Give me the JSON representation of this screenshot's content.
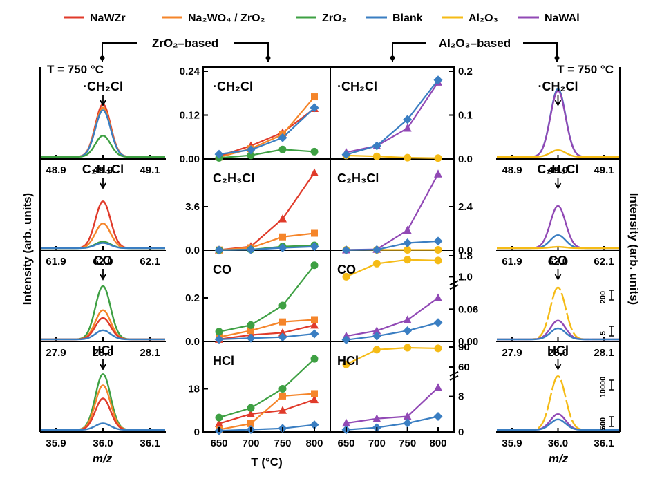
{
  "legend": [
    {
      "label": "NaWZr",
      "color": "#e03a2a"
    },
    {
      "label": "Na2WO4 / ZrO2",
      "color": "#f5852a"
    },
    {
      "label": "ZrO2",
      "color": "#3ea043"
    },
    {
      "label": "Blank",
      "color": "#3a7ec2"
    },
    {
      "label": "Al2O3",
      "color": "#f5bb16"
    },
    {
      "label": "NaWAl",
      "color": "#9149b5"
    }
  ],
  "group_labels": {
    "zro2": "ZrO2–based",
    "al2o3": "Al2O3–based"
  },
  "temp_labels": {
    "left": "T = 750 °C",
    "right": "T = 750 °C"
  },
  "axis_labels": {
    "left_y": "Intensity (arb. units)",
    "right_y": "Intensity (arb. units)",
    "mz_left": "m/z",
    "mz_right": "m/z",
    "temp_x": "T (°C)"
  },
  "species": [
    "·CH2Cl",
    "C2H3Cl",
    "CO",
    "HCl"
  ],
  "chart_data": [
    {
      "type": "line",
      "panel": "ZrO2-based",
      "x": [
        650,
        700,
        750,
        800
      ],
      "xlabel": "T (°C)",
      "rows": [
        {
          "species": "·CH2Cl",
          "ylim": [
            0,
            0.24
          ],
          "yticks": [
            "0.00",
            "0.12",
            "0.24"
          ],
          "series": [
            {
              "name": "NaWZr",
              "values": [
                0.008,
                0.036,
                0.072,
                0.138
              ]
            },
            {
              "name": "Na2WO4 / ZrO2",
              "values": [
                0.005,
                0.028,
                0.067,
                0.17
              ]
            },
            {
              "name": "ZrO2",
              "values": [
                0.003,
                0.01,
                0.026,
                0.02
              ]
            },
            {
              "name": "Blank",
              "values": [
                0.013,
                0.025,
                0.058,
                0.14
              ]
            }
          ]
        },
        {
          "species": "C2H3Cl",
          "ylim": [
            0,
            7.2
          ],
          "yticks": [
            "0.0",
            "3.6"
          ],
          "series": [
            {
              "name": "NaWZr",
              "values": [
                0.02,
                0.3,
                2.6,
                6.4
              ]
            },
            {
              "name": "Na2WO4 / ZrO2",
              "values": [
                0.02,
                0.2,
                1.1,
                1.4
              ]
            },
            {
              "name": "ZrO2",
              "values": [
                0.01,
                0.05,
                0.3,
                0.4
              ]
            },
            {
              "name": "Blank",
              "values": [
                0.01,
                0.05,
                0.2,
                0.3
              ]
            }
          ]
        },
        {
          "species": "CO",
          "ylim": [
            0,
            0.4
          ],
          "yticks": [
            "0.0",
            "0.2"
          ],
          "series": [
            {
              "name": "NaWZr",
              "values": [
                0.01,
                0.03,
                0.04,
                0.075
              ]
            },
            {
              "name": "Na2WO4 / ZrO2",
              "values": [
                0.02,
                0.05,
                0.09,
                0.1
              ]
            },
            {
              "name": "ZrO2",
              "values": [
                0.045,
                0.075,
                0.165,
                0.35
              ]
            },
            {
              "name": "Blank",
              "values": [
                0.01,
                0.015,
                0.02,
                0.035
              ]
            }
          ]
        },
        {
          "species": "HCl",
          "ylim": [
            0,
            36
          ],
          "yticks": [
            "0",
            "18"
          ],
          "series": [
            {
              "name": "NaWZr",
              "values": [
                3.5,
                7.5,
                9.0,
                13.5
              ]
            },
            {
              "name": "Na2WO4 / ZrO2",
              "values": [
                1.0,
                3.5,
                15.0,
                16.0
              ]
            },
            {
              "name": "ZrO2",
              "values": [
                6.0,
                10.0,
                18.0,
                30.5
              ]
            },
            {
              "name": "Blank",
              "values": [
                0.5,
                1.0,
                1.5,
                3.0
              ]
            }
          ]
        }
      ]
    },
    {
      "type": "line",
      "panel": "Al2O3-based",
      "x": [
        650,
        700,
        750,
        800
      ],
      "xlabel": "T (°C)",
      "rows": [
        {
          "species": "·CH2Cl",
          "ylim": [
            0,
            0.2
          ],
          "yticks": [
            "0.0",
            "0.1",
            "0.2"
          ],
          "series": [
            {
              "name": "Al2O3",
              "values": [
                0.008,
                0.006,
                0.003,
                0.002
              ]
            },
            {
              "name": "NaWAl",
              "values": [
                0.015,
                0.03,
                0.07,
                0.175
              ]
            },
            {
              "name": "Blank",
              "values": [
                0.01,
                0.03,
                0.09,
                0.18
              ]
            }
          ]
        },
        {
          "species": "C2H3Cl",
          "ylim": [
            0,
            4.8
          ],
          "yticks": [
            "0.0",
            "2.4"
          ],
          "series": [
            {
              "name": "Al2O3",
              "values": [
                0.02,
                0.02,
                0.02,
                0.02
              ]
            },
            {
              "name": "NaWAl",
              "values": [
                0.02,
                0.05,
                1.1,
                4.2
              ]
            },
            {
              "name": "Blank",
              "values": [
                0.01,
                0.03,
                0.4,
                0.5
              ]
            }
          ]
        },
        {
          "species": "CO",
          "yticks": [
            "0.00",
            "0.06",
            "1.0",
            "1.8"
          ],
          "broken_axis": {
            "lower": [
              0,
              0.1
            ],
            "upper": [
              0.9,
              1.8
            ]
          },
          "series": [
            {
              "name": "Al2O3",
              "values": [
                1.0,
                1.5,
                1.65,
                1.62
              ]
            },
            {
              "name": "NaWAl",
              "values": [
                0.01,
                0.02,
                0.04,
                0.081
              ]
            },
            {
              "name": "Blank",
              "values": [
                0.003,
                0.01,
                0.02,
                0.035
              ]
            }
          ]
        },
        {
          "species": "HCl",
          "yticks": [
            "0",
            "8",
            "60",
            "90"
          ],
          "broken_axis": {
            "lower": [
              0,
              12
            ],
            "upper": [
              55,
              90
            ]
          },
          "series": [
            {
              "name": "Al2O3",
              "values": [
                64,
                86,
                89,
                88
              ]
            },
            {
              "name": "NaWAl",
              "values": [
                2.0,
                3.0,
                3.5,
                10.0
              ]
            },
            {
              "name": "Blank",
              "values": [
                0.5,
                1.0,
                2.0,
                3.5
              ]
            }
          ]
        }
      ]
    },
    {
      "type": "line",
      "panel": "ZrO2-based mass spectra at T = 750 °C",
      "xlabel": "m/z",
      "rows": [
        {
          "species": "·CH2Cl",
          "xticks": [
            "48.9",
            "49.0",
            "49.1"
          ],
          "center": 49.0,
          "peaks": [
            {
              "name": "NaWZr",
              "height": 0.62
            },
            {
              "name": "Na2WO4 / ZrO2",
              "height": 0.58
            },
            {
              "name": "ZrO2",
              "height": 0.25
            },
            {
              "name": "Blank",
              "height": 0.55
            }
          ]
        },
        {
          "species": "C2H3Cl",
          "xticks": [
            "61.9",
            "62.0",
            "62.1"
          ],
          "center": 62.0,
          "peaks": [
            {
              "name": "NaWZr",
              "height": 0.72
            },
            {
              "name": "Na2WO4 / ZrO2",
              "height": 0.38
            },
            {
              "name": "ZrO2",
              "height": 0.1
            },
            {
              "name": "Blank",
              "height": 0.08
            }
          ]
        },
        {
          "species": "CO",
          "xticks": [
            "27.9",
            "28.0",
            "28.1"
          ],
          "center": 28.0,
          "peaks": [
            {
              "name": "NaWZr",
              "height": 0.33
            },
            {
              "name": "Na2WO4 / ZrO2",
              "height": 0.45
            },
            {
              "name": "ZrO2",
              "height": 0.82
            },
            {
              "name": "Blank",
              "height": 0.14
            }
          ]
        },
        {
          "species": "HCl",
          "xticks": [
            "35.9",
            "36.0",
            "36.1"
          ],
          "center": 36.0,
          "peaks": [
            {
              "name": "NaWZr",
              "height": 0.48
            },
            {
              "name": "Na2WO4 / ZrO2",
              "height": 0.68
            },
            {
              "name": "ZrO2",
              "height": 0.85
            },
            {
              "name": "Blank",
              "height": 0.1
            }
          ]
        }
      ]
    },
    {
      "type": "line",
      "panel": "Al2O3-based mass spectra at T = 750 °C",
      "xlabel": "m/z",
      "rows": [
        {
          "species": "·CH2Cl",
          "xticks": [
            "48.9",
            "49.0",
            "49.1"
          ],
          "center": 49.0,
          "peaks": [
            {
              "name": "NaWAl",
              "height": 0.78
            },
            {
              "name": "Al2O3",
              "height": 0.08
            },
            {
              "name": "Blank",
              "height": 0.8
            }
          ]
        },
        {
          "species": "C2H3Cl",
          "xticks": [
            "61.9",
            "62.0",
            "62.1"
          ],
          "center": 62.0,
          "peaks": [
            {
              "name": "NaWAl",
              "height": 0.65
            },
            {
              "name": "Al2O3",
              "height": 0.02
            },
            {
              "name": "Blank",
              "height": 0.2
            }
          ]
        },
        {
          "species": "CO",
          "xticks": [
            "27.9",
            "28.0",
            "28.1"
          ],
          "center": 28.0,
          "scale_bars": [
            "200",
            "5"
          ],
          "peaks": [
            {
              "name": "Al2O3",
              "height": 0.8
            },
            {
              "name": "NaWAl",
              "height": 0.29
            },
            {
              "name": "Blank",
              "height": 0.17
            }
          ]
        },
        {
          "species": "HCl",
          "xticks": [
            "35.9",
            "36.0",
            "36.1"
          ],
          "center": 36.0,
          "scale_bars": [
            "10000",
            "500"
          ],
          "peaks": [
            {
              "name": "Al2O3",
              "height": 0.82
            },
            {
              "name": "NaWAl",
              "height": 0.24
            },
            {
              "name": "Blank",
              "height": 0.16
            }
          ]
        }
      ]
    }
  ]
}
